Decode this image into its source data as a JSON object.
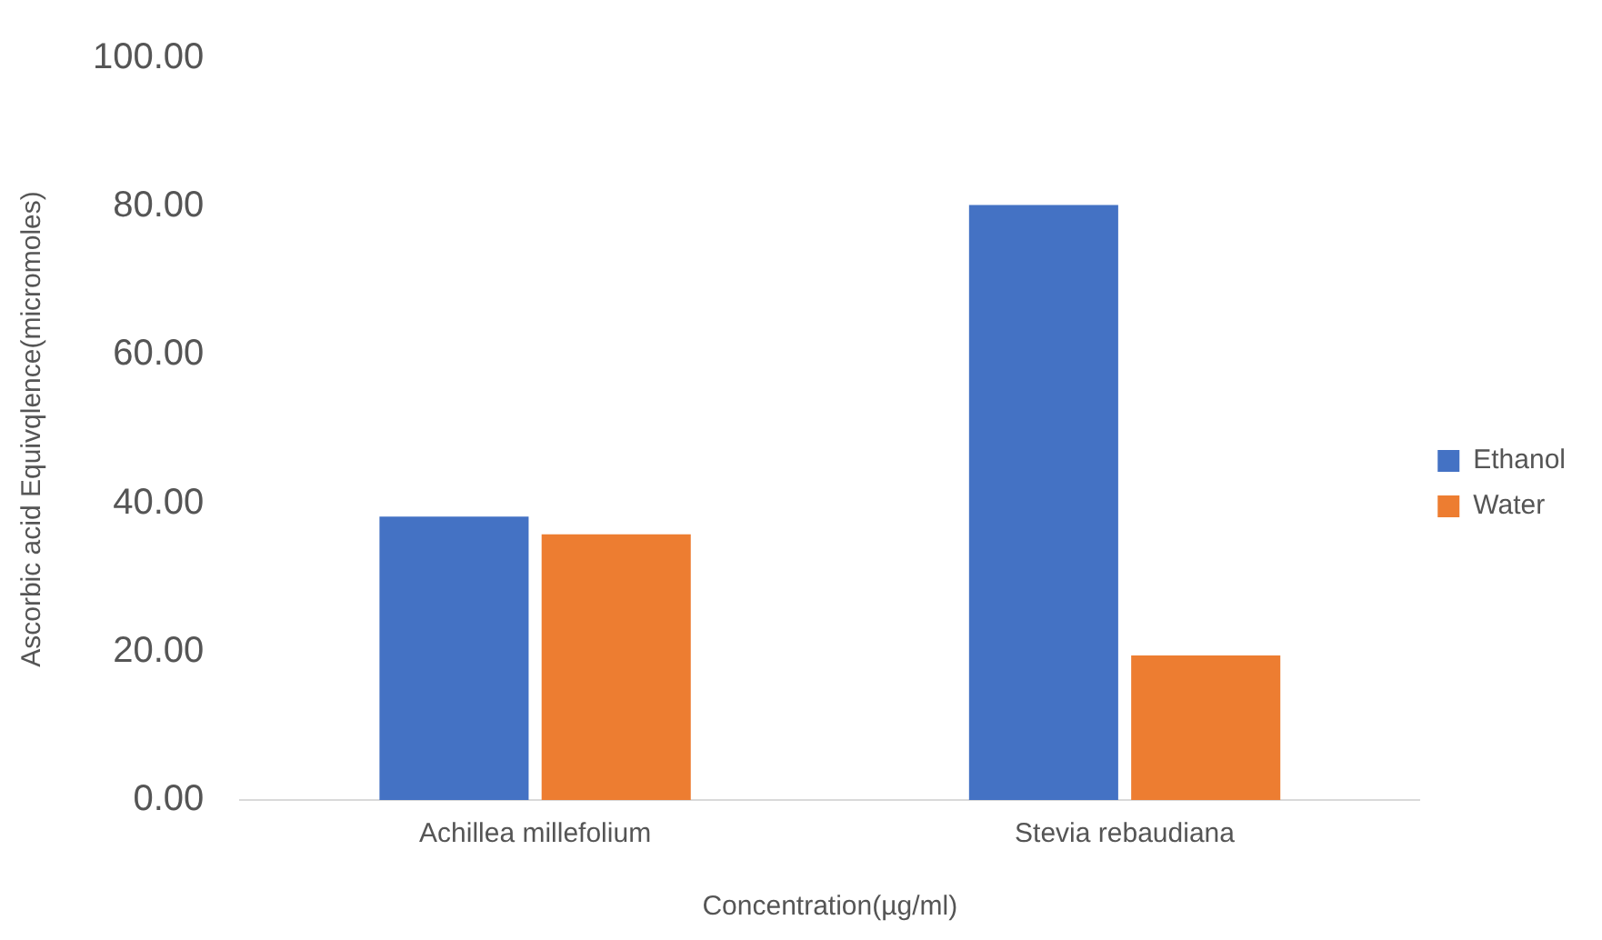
{
  "chart_data": {
    "type": "bar",
    "categories": [
      "Achillea millefolium",
      "Stevia rebaudiana"
    ],
    "series": [
      {
        "name": "Ethanol",
        "color": "#4472c4",
        "values": [
          38.2,
          80.2
        ]
      },
      {
        "name": "Water",
        "color": "#ed7d31",
        "values": [
          35.8,
          19.5
        ]
      }
    ],
    "xlabel": "Concentration(µg/ml)",
    "ylabel": "Ascorbic acid Equivqlence(micromoles)",
    "ylim": [
      0,
      100
    ],
    "yticks": [
      {
        "value": 0,
        "label": "0.00"
      },
      {
        "value": 20,
        "label": "20.00"
      },
      {
        "value": 40,
        "label": "40.00"
      },
      {
        "value": 60,
        "label": "60.00"
      },
      {
        "value": 80,
        "label": "80.00"
      },
      {
        "value": 100,
        "label": "100.00"
      }
    ],
    "grid": false,
    "legend": "right"
  }
}
